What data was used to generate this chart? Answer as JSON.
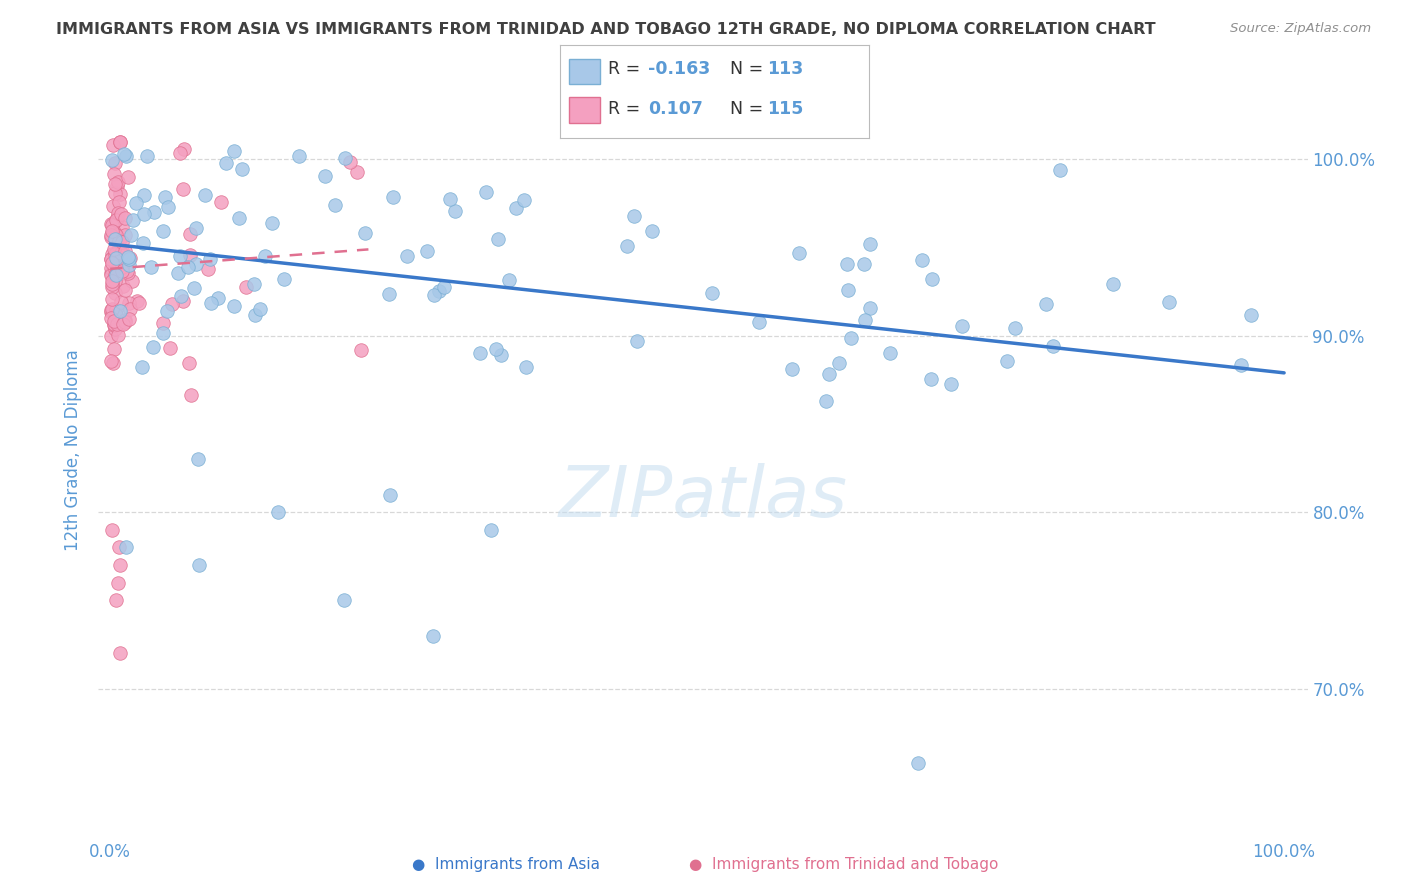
{
  "title": "IMMIGRANTS FROM ASIA VS IMMIGRANTS FROM TRINIDAD AND TOBAGO 12TH GRADE, NO DIPLOMA CORRELATION CHART",
  "source": "Source: ZipAtlas.com",
  "ylabel": "12th Grade, No Diploma",
  "color_asia": "#a8c8e8",
  "color_asia_edge": "#7aafd4",
  "color_asia_line": "#3a78c9",
  "color_tt": "#f4a0c0",
  "color_tt_edge": "#e07090",
  "color_tt_line": "#e07090",
  "background_color": "#ffffff",
  "grid_color": "#d8d8d8",
  "title_color": "#404040",
  "tick_color": "#5a9ad5",
  "legend_text_color": "#333333",
  "legend_val_color": "#5a9ad5",
  "watermark_color": "#c5ddf0",
  "legend_R_asia": "-0.163",
  "legend_N_asia": "113",
  "legend_R_tt": "0.107",
  "legend_N_tt": "115",
  "xlim": [
    -0.01,
    1.02
  ],
  "ylim": [
    0.615,
    1.055
  ],
  "yticks": [
    0.7,
    0.8,
    0.9,
    1.0
  ],
  "ytick_labels": [
    "70.0%",
    "80.0%",
    "90.0%",
    "100.0%"
  ],
  "xticks": [
    0.0,
    1.0
  ],
  "xtick_labels": [
    "0.0%",
    "100.0%"
  ]
}
